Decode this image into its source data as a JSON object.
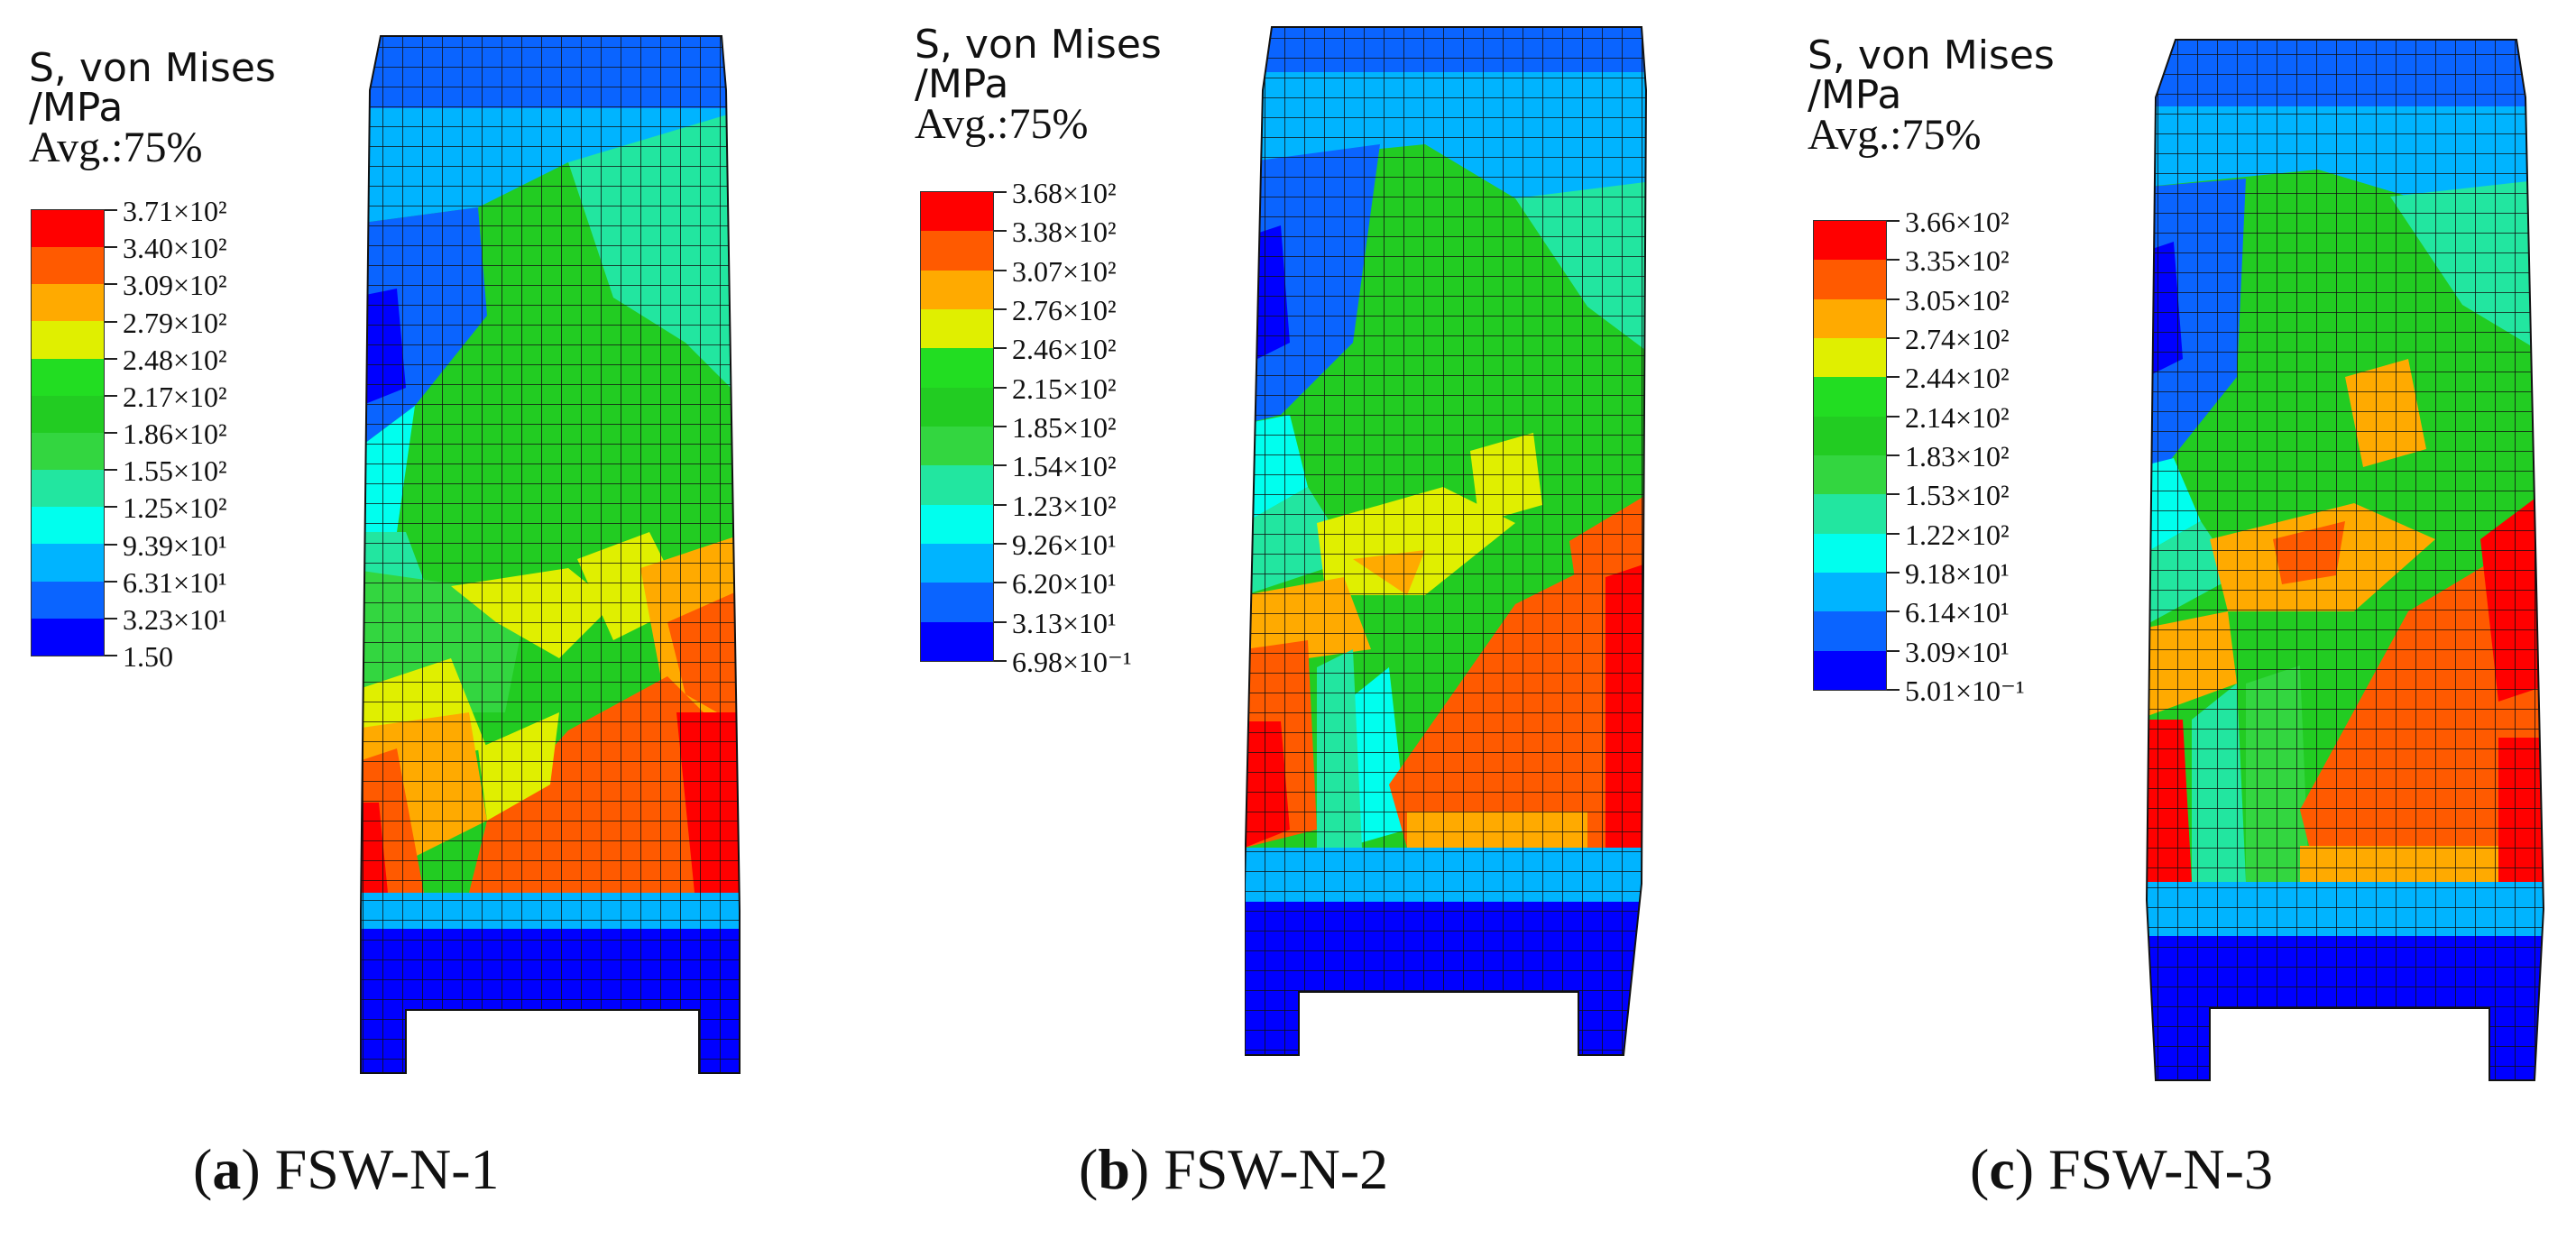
{
  "panels": [
    {
      "legend_title": [
        "S, von Mises",
        "/MPa"
      ],
      "avg": "Avg.:75%",
      "values": [
        "3.71×10²",
        "3.40×10²",
        "3.09×10²",
        "2.79×10²",
        "2.48×10²",
        "2.17×10²",
        "1.86×10²",
        "1.55×10²",
        "1.25×10²",
        "9.39×10¹",
        "6.31×10¹",
        "3.23×10¹",
        "1.50"
      ],
      "caption_letter": "a",
      "caption_name": "FSW-N-1"
    },
    {
      "legend_title": [
        "S, von Mises",
        "/MPa"
      ],
      "avg": "Avg.:75%",
      "values": [
        "3.68×10²",
        "3.38×10²",
        "3.07×10²",
        "2.76×10²",
        "2.46×10²",
        "2.15×10²",
        "1.85×10²",
        "1.54×10²",
        "1.23×10²",
        "9.26×10¹",
        "6.20×10¹",
        "3.13×10¹",
        "6.98×10⁻¹"
      ],
      "caption_letter": "b",
      "caption_name": "FSW-N-2"
    },
    {
      "legend_title": [
        "S, von Mises",
        "/MPa"
      ],
      "avg": "Avg.:75%",
      "values": [
        "3.66×10²",
        "3.35×10²",
        "3.05×10²",
        "2.74×10²",
        "2.44×10²",
        "2.14×10²",
        "1.83×10²",
        "1.53×10²",
        "1.22×10²",
        "9.18×10¹",
        "6.14×10¹",
        "3.09×10¹",
        "5.01×10⁻¹"
      ],
      "caption_letter": "c",
      "caption_name": "FSW-N-3"
    }
  ],
  "colormap": [
    "#ff0000",
    "#ff5a00",
    "#ffaa00",
    "#e0ef00",
    "#22dd22",
    "#22cc22",
    "#33d640",
    "#22e6a0",
    "#00ffee",
    "#00b4ff",
    "#0a64ff",
    "#0000ff"
  ]
}
